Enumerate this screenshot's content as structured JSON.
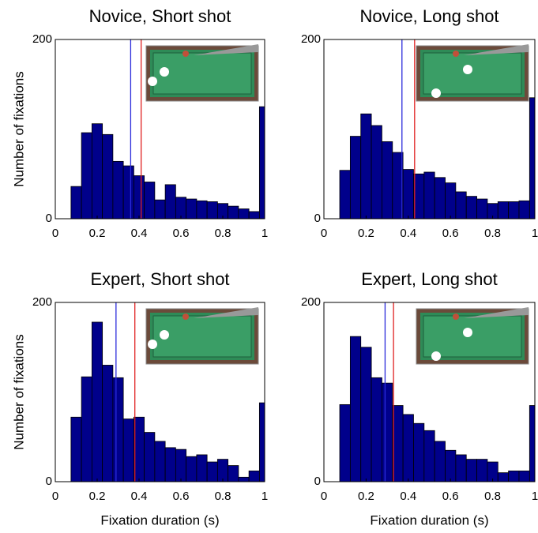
{
  "chart_data": [
    {
      "type": "histogram",
      "title": "Novice, Short shot",
      "ylabel": "Number of fixations",
      "color": "#00008b",
      "bins": [
        0.075,
        0.125,
        0.175,
        0.225,
        0.275,
        0.325,
        0.375,
        0.425,
        0.475,
        0.525,
        0.575,
        0.625,
        0.675,
        0.725,
        0.775,
        0.825,
        0.875,
        0.925,
        0.975,
        1.0
      ],
      "values": [
        36,
        96,
        106,
        94,
        64,
        59,
        48,
        41,
        21,
        38,
        24,
        22,
        20,
        19,
        17,
        14,
        11,
        8,
        125
      ],
      "markers": [
        {
          "value": 0.36,
          "color": "#2b2bdb"
        },
        {
          "value": 0.41,
          "color": "#e02020"
        }
      ],
      "xlim": [
        0,
        1
      ],
      "ylim": [
        0,
        200
      ],
      "xticks": [
        0,
        0.2,
        0.4,
        0.6,
        0.8,
        1
      ],
      "yticks": [
        0,
        200
      ]
    },
    {
      "type": "histogram",
      "title": "Novice, Long shot",
      "color": "#00008b",
      "bins": [
        0.075,
        0.125,
        0.175,
        0.225,
        0.275,
        0.325,
        0.375,
        0.425,
        0.475,
        0.525,
        0.575,
        0.625,
        0.675,
        0.725,
        0.775,
        0.825,
        0.875,
        0.925,
        0.975,
        1.0
      ],
      "values": [
        54,
        92,
        117,
        104,
        86,
        74,
        55,
        50,
        52,
        46,
        40,
        30,
        25,
        22,
        17,
        19,
        19,
        20,
        135
      ],
      "markers": [
        {
          "value": 0.37,
          "color": "#2b2bdb"
        },
        {
          "value": 0.43,
          "color": "#e02020"
        }
      ],
      "xlim": [
        0,
        1
      ],
      "ylim": [
        0,
        200
      ],
      "xticks": [
        0,
        0.2,
        0.4,
        0.6,
        0.8,
        1
      ],
      "yticks": [
        0,
        200
      ]
    },
    {
      "type": "histogram",
      "title": "Expert, Short shot",
      "ylabel": "Number of fixations",
      "xlabel": "Fixation duration (s)",
      "color": "#00008b",
      "bins": [
        0.075,
        0.125,
        0.175,
        0.225,
        0.275,
        0.325,
        0.375,
        0.425,
        0.475,
        0.525,
        0.575,
        0.625,
        0.675,
        0.725,
        0.775,
        0.825,
        0.875,
        0.925,
        0.975,
        1.0
      ],
      "values": [
        72,
        117,
        178,
        130,
        116,
        70,
        72,
        55,
        45,
        38,
        36,
        28,
        30,
        22,
        25,
        18,
        5,
        12,
        88
      ],
      "markers": [
        {
          "value": 0.29,
          "color": "#2b2bdb"
        },
        {
          "value": 0.38,
          "color": "#e02020"
        }
      ],
      "xlim": [
        0,
        1
      ],
      "ylim": [
        0,
        200
      ],
      "xticks": [
        0,
        0.2,
        0.4,
        0.6,
        0.8,
        1
      ],
      "yticks": [
        0,
        200
      ]
    },
    {
      "type": "histogram",
      "title": "Expert, Long shot",
      "xlabel": "Fixation duration (s)",
      "color": "#00008b",
      "bins": [
        0.075,
        0.125,
        0.175,
        0.225,
        0.275,
        0.325,
        0.375,
        0.425,
        0.475,
        0.525,
        0.575,
        0.625,
        0.675,
        0.725,
        0.775,
        0.825,
        0.875,
        0.925,
        0.975,
        1.0
      ],
      "values": [
        86,
        162,
        150,
        116,
        110,
        85,
        75,
        65,
        57,
        45,
        35,
        30,
        25,
        25,
        22,
        10,
        12,
        12,
        85
      ],
      "markers": [
        {
          "value": 0.29,
          "color": "#2b2bdb"
        },
        {
          "value": 0.33,
          "color": "#e02020"
        }
      ],
      "xlim": [
        0,
        1
      ],
      "ylim": [
        0,
        200
      ],
      "xticks": [
        0,
        0.2,
        0.4,
        0.6,
        0.8,
        1
      ],
      "yticks": [
        0,
        200
      ]
    }
  ]
}
